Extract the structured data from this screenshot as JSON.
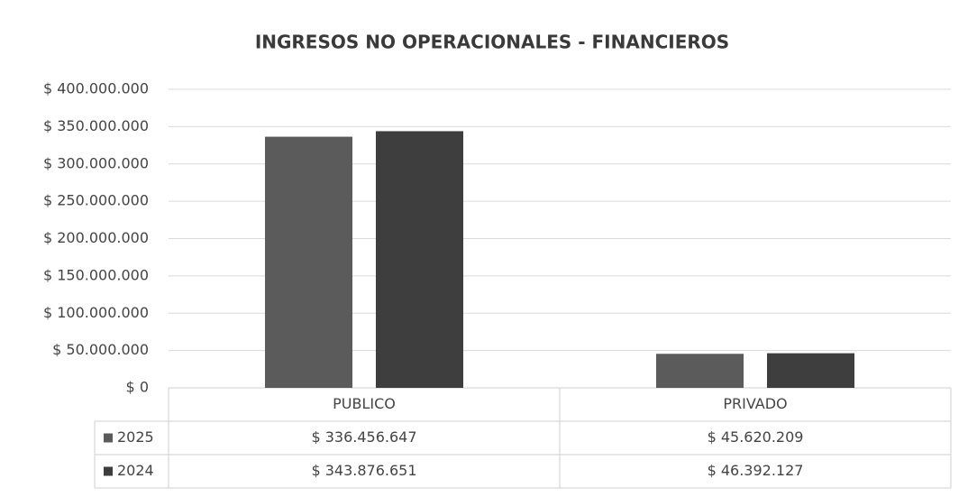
{
  "chart_data": {
    "type": "bar",
    "title": "INGRESOS NO OPERACIONALES - FINANCIEROS",
    "categories": [
      "PUBLICO",
      "PRIVADO"
    ],
    "series": [
      {
        "name": "2025",
        "color": "#5b5b5b",
        "values": [
          336456647,
          45620209
        ],
        "value_labels": [
          "$ 336.456.647",
          "$ 45.620.209"
        ]
      },
      {
        "name": "2024",
        "color": "#3e3e3e",
        "values": [
          343876651,
          46392127
        ],
        "value_labels": [
          "$ 343.876.651",
          "$ 46.392.127"
        ]
      }
    ],
    "ylim": [
      0,
      400000000
    ],
    "yticks": [
      {
        "value": 0,
        "label": "$ 0"
      },
      {
        "value": 50000000,
        "label": "$ 50.000.000"
      },
      {
        "value": 100000000,
        "label": "$ 100.000.000"
      },
      {
        "value": 150000000,
        "label": "$ 150.000.000"
      },
      {
        "value": 200000000,
        "label": "$ 200.000.000"
      },
      {
        "value": 250000000,
        "label": "$ 250.000.000"
      },
      {
        "value": 300000000,
        "label": "$ 300.000.000"
      },
      {
        "value": 350000000,
        "label": "$ 350.000.000"
      },
      {
        "value": 400000000,
        "label": "$ 400.000.000"
      }
    ],
    "grid": true
  }
}
